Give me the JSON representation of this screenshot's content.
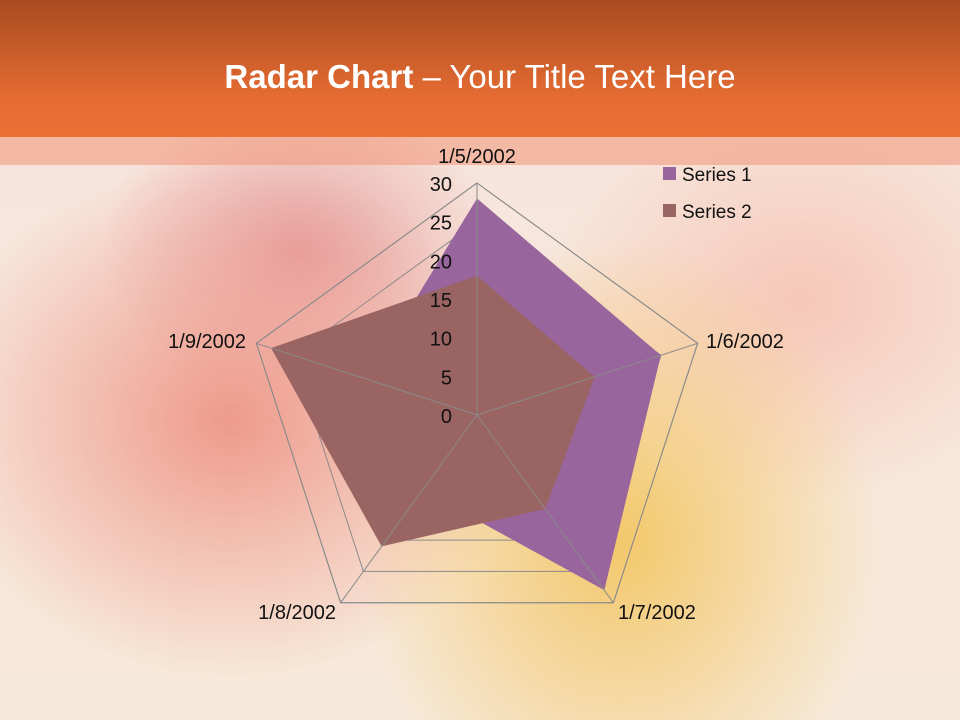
{
  "slide": {
    "title_bold": "Radar Chart",
    "title_rest": " – Your Title Text Here"
  },
  "chart_data": {
    "type": "radar",
    "categories": [
      "1/5/2002",
      "1/6/2002",
      "1/7/2002",
      "1/8/2002",
      "1/9/2002"
    ],
    "series": [
      {
        "name": "Series 1",
        "values": [
          28,
          25,
          28,
          12,
          15
        ],
        "color": "#98669c"
      },
      {
        "name": "Series 2",
        "values": [
          18,
          16,
          15,
          21,
          28
        ],
        "color": "#9a6462"
      }
    ],
    "rlim": [
      0,
      30
    ],
    "ticks": [
      "0",
      "5",
      "10",
      "15",
      "20",
      "25",
      "30"
    ],
    "legend": "top-right",
    "grid": true
  }
}
